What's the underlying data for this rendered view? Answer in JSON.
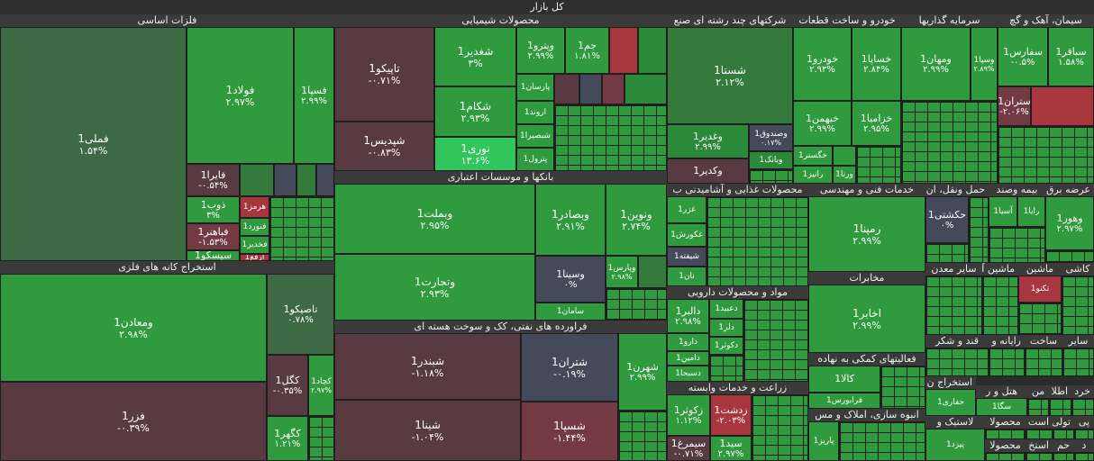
{
  "market_title": "کل بازار",
  "sectors": {
    "metals": "فلزات اساسی",
    "chemicals": "محصولات شیمیایی",
    "multi": "شرکتهای چند رشته ای صنع",
    "auto": "خودرو و ساخت قطعات",
    "invest": "سرمایه گذاریها",
    "cement": "سیمان، آهک و گچ",
    "mining": "استخراج کانه های فلزی",
    "banks": "بانکها و موسسات اعتباری",
    "food": "محصولات غذایی و آشامیدنی ب",
    "tech": "خدمات فنی و مهندسی",
    "transport": "حمل ونقل، ان",
    "insurance": "بیمه وصند",
    "utility": "عرضه برق",
    "refinery": "فراورده های نفتی، کک و سوخت هسته ای",
    "pharma": "مواد و محصولات دارویی",
    "telecom": "مخابرات",
    "agri": "زراعت و خدمات وابسته",
    "support": "فعالیتهای کمکی به نهاده",
    "building": "انبوه سازی، املاک و مس",
    "other_mining": "سایر معدن",
    "machinery": "ماشین آ",
    "machinery2": "ماشین",
    "tiles": "کاشی",
    "sugar": "قند و شکر",
    "computer": "رایانه و",
    "construction": "ساخت",
    "other": "سایر",
    "extraction": "استخراج ن",
    "hotel": "هتل و ر",
    "m": "من",
    "atla": "اطلا",
    "khord": "خرد",
    "rubber": "لاستیک و",
    "product": "محصولا",
    "textile": "منسوج",
    "sanat": "استخ",
    "h": "حم",
    "d": "د",
    "toli": "تولی",
    "ast": "است",
    "p": "پی",
    "mah": "محصولا"
  },
  "tiles": {
    "fameli": {
      "name": "فملی1",
      "pct": "۱.۵۴%"
    },
    "foolad": {
      "name": "فولاد1",
      "pct": "۲.۹۷%"
    },
    "fsepa": {
      "name": "فسپا1",
      "pct": "۲.۹۹%"
    },
    "faraa": {
      "name": "فایرا1",
      "pct": "-۰.۵۴%"
    },
    "zob": {
      "name": "ذوب1",
      "pct": "۳%"
    },
    "hormoz": {
      "name": "هرمز1"
    },
    "fanvard": {
      "name": "فنورد1"
    },
    "fabahonar": {
      "name": "فباهنر1",
      "pct": "-۱.۵۳%"
    },
    "fakhoz": {
      "name": "فخدیر1"
    },
    "seisco": {
      "name": "سیسکو1"
    },
    "arfa": {
      "name": "ارفع1"
    },
    "tapiko": {
      "name": "تاپیکو1",
      "pct": "-۰.۷۱%"
    },
    "shepdis": {
      "name": "شپدیس1",
      "pct": "-۰.۸۳%"
    },
    "shaghadir": {
      "name": "شغدیر1",
      "pct": "۳%"
    },
    "shekam": {
      "name": "شکام1",
      "pct": "۲.۹۳%"
    },
    "noori": {
      "name": "نوری1",
      "pct": "۱۳.۶%"
    },
    "vpetro": {
      "name": "وپترو1",
      "pct": "۲.۹۹%"
    },
    "jam": {
      "name": "جم1",
      "pct": "۱.۸۱%"
    },
    "parsan": {
      "name": "پارسان1"
    },
    "arvand": {
      "name": "اروند1"
    },
    "shbandar2": {
      "name": "شبصیرا1"
    },
    "petrol": {
      "name": "پترول1"
    },
    "shasta": {
      "name": "شستا1",
      "pct": "۲.۱۲%"
    },
    "vghadir": {
      "name": "وغدیر1",
      "pct": "۲.۹۹%"
    },
    "vsandoq": {
      "name": "وصندوق1",
      "pct": "۰.۱۷%"
    },
    "vbank": {
      "name": "وبانک1"
    },
    "vkadir": {
      "name": "وکدیر1"
    },
    "khodro": {
      "name": "خودرو1",
      "pct": "۲.۹۳%"
    },
    "khsapa": {
      "name": "خساپا1",
      "pct": "۲.۸۴%"
    },
    "khbahman": {
      "name": "خبهمن1",
      "pct": "۲.۹۹%"
    },
    "khzamia": {
      "name": "خزامیا1",
      "pct": "۲.۹۵%"
    },
    "khgostar": {
      "name": "خگستر1"
    },
    "ranir": {
      "name": "رانیز1"
    },
    "vrana": {
      "name": "ورنا1"
    },
    "vmahan": {
      "name": "ومهان1",
      "pct": "۲.۹۹%"
    },
    "vsapa": {
      "name": "وسپا1",
      "pct": "۲.۸۹%"
    },
    "sfares": {
      "name": "سفارس1",
      "pct": "-۰.۵%"
    },
    "sbagher": {
      "name": "سباقر1",
      "pct": "۱.۵۸%"
    },
    "stran": {
      "name": "ستران1",
      "pct": "-۲.۰۶%"
    },
    "vmadean": {
      "name": "ومعادن1",
      "pct": "۲.۹۸%"
    },
    "tapiko2": {
      "name": "تاصیکو1",
      "pct": "۰.۷۸%"
    },
    "kgol": {
      "name": "کگل1",
      "pct": "-۰.۳۵%"
    },
    "kchad": {
      "name": "کچاد1",
      "pct": "۲.۹۷%"
    },
    "fzar": {
      "name": "فزر1",
      "pct": "-۰.۳۹%"
    },
    "kgohar": {
      "name": "کگهر1",
      "pct": "۱.۲۱%"
    },
    "vbmellat": {
      "name": "وبملت1",
      "pct": "۲.۹۵%"
    },
    "vbsader": {
      "name": "وبصادر1",
      "pct": "۲.۹۱%"
    },
    "vnovin": {
      "name": "ونوین1",
      "pct": "۲.۷۴%"
    },
    "vtejarat": {
      "name": "وتجارت1",
      "pct": "۲.۹۳%"
    },
    "vsina": {
      "name": "وسینا1",
      "pct": "۰%"
    },
    "vparsi": {
      "name": "وپارس1",
      "pct": "۲.۹۸%"
    },
    "saman": {
      "name": "سامان1"
    },
    "shbandar": {
      "name": "شبندر1",
      "pct": "-۱.۱۸%"
    },
    "shtran": {
      "name": "شتران1",
      "pct": "-۰.۱۹%"
    },
    "shahr": {
      "name": "شهرن1",
      "pct": "۲.۹۹%"
    },
    "shina": {
      "name": "شینا1",
      "pct": "-۱.۰۴%"
    },
    "shespa": {
      "name": "شسپا1",
      "pct": "-۱.۴۴%"
    },
    "ghazar": {
      "name": "غزر1"
    },
    "ghkorosh": {
      "name": "غکورش1"
    },
    "shifte": {
      "name": "شیفته1"
    },
    "nan": {
      "name": "نان1"
    },
    "dalbr": {
      "name": "دالبر1",
      "pct": "۲.۹۸%"
    },
    "dtid": {
      "name": "دعبید1"
    },
    "daloor": {
      "name": "دلر1"
    },
    "dalber2": {
      "name": "دالبر1"
    },
    "daro": {
      "name": "دارو1"
    },
    "dkosar": {
      "name": "دکوثر1"
    },
    "damin": {
      "name": "دامین1"
    },
    "dsbha": {
      "name": "دسبحا1"
    },
    "zkoser": {
      "name": "زکوثر1",
      "pct": "۱.۱۲%"
    },
    "zdsht": {
      "name": "زدشت1",
      "pct": "-۲.۰۳%"
    },
    "simorgh": {
      "name": "سیمرغ1",
      "pct": "-۰.۷۱%"
    },
    "sid": {
      "name": "سید1",
      "pct": "۲.۹۷%"
    },
    "remina": {
      "name": "رمپنا1",
      "pct": "۲.۹۹%"
    },
    "akhabar": {
      "name": "اخابر1",
      "pct": "۲.۹۹%"
    },
    "kala": {
      "name": "کالا1"
    },
    "farabours": {
      "name": "فرابورس1"
    },
    "parbiz": {
      "name": "پاریز1"
    },
    "hkeshti": {
      "name": "حکشتی1",
      "pct": "۰%"
    },
    "vhoor": {
      "name": "وهور1",
      "pct": "۲.۹۷%"
    },
    "asia": {
      "name": "آسیا1"
    },
    "raya": {
      "name": "رایا1"
    },
    "tekno": {
      "name": "تکنو1"
    },
    "hafari": {
      "name": "حفاری1"
    },
    "smga": {
      "name": "سگا1"
    },
    "pezd": {
      "name": "پیزد1"
    }
  }
}
